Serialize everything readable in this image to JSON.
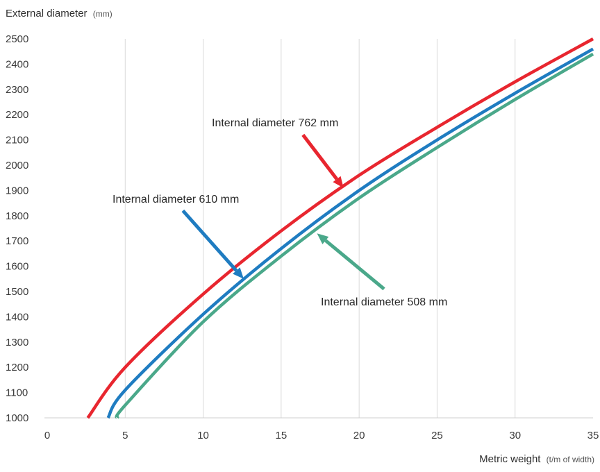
{
  "chart_data": {
    "type": "line",
    "ylabel": "External diameter",
    "ylabel_unit": "(mm)",
    "xlabel": "Metric weight",
    "xlabel_unit": "(t/m of width)",
    "xlim": [
      0,
      35
    ],
    "ylim": [
      1000,
      2500
    ],
    "xticks": [
      0,
      5,
      10,
      15,
      20,
      25,
      30,
      35
    ],
    "yticks": [
      1000,
      1100,
      1200,
      1300,
      1400,
      1500,
      1600,
      1700,
      1800,
      1900,
      2000,
      2100,
      2200,
      2300,
      2400,
      2500
    ],
    "grid": "vertical",
    "series": [
      {
        "name": "Internal diameter 762 mm",
        "color": "#e8262f",
        "x": [
          2.6,
          5,
          10,
          15,
          20,
          25,
          30,
          35
        ],
        "y": [
          1000,
          1200,
          1490,
          1740,
          1960,
          2150,
          2330,
          2500
        ]
      },
      {
        "name": "Internal diameter 610 mm",
        "color": "#1f7cc1",
        "x": [
          3.9,
          5,
          10,
          15,
          20,
          25,
          30,
          35
        ],
        "y": [
          1000,
          1110,
          1410,
          1670,
          1900,
          2100,
          2285,
          2460
        ]
      },
      {
        "name": "Internal diameter 508 mm",
        "color": "#4aa88a",
        "x": [
          4.5,
          5,
          10,
          15,
          20,
          25,
          30,
          35
        ],
        "y": [
          1000,
          1050,
          1380,
          1640,
          1870,
          2070,
          2260,
          2440
        ]
      }
    ],
    "annotations": [
      {
        "text": "Internal diameter 762 mm",
        "color": "#e8262f",
        "arrow_to": [
          19,
          1910
        ],
        "arrow_from": [
          16.4,
          2120
        ]
      },
      {
        "text": "Internal diameter 610 mm",
        "color": "#1f7cc1",
        "arrow_to": [
          12.6,
          1550
        ],
        "arrow_from": [
          8.7,
          1820
        ]
      },
      {
        "text": "Internal diameter 508 mm",
        "color": "#4aa88a",
        "arrow_to": [
          17.3,
          1730
        ],
        "arrow_from": [
          21.6,
          1510
        ]
      }
    ]
  }
}
